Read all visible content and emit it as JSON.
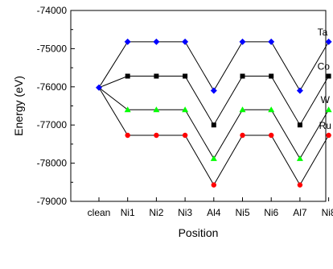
{
  "chart_data": {
    "type": "line",
    "categories": [
      "clean",
      "Ni1",
      "Ni2",
      "Ni3",
      "Al4",
      "Ni5",
      "Ni6",
      "Al7",
      "Ni8"
    ],
    "xlabel": "Position",
    "ylabel": "Energy (eV)",
    "ylim": [
      -79000,
      -74000
    ],
    "yticks": [
      -79000,
      -78000,
      -77000,
      -76000,
      -75000,
      -74000
    ],
    "yticklabels": [
      "-79000",
      "-78000",
      "-77000",
      "-76000",
      "-75000",
      "-74000"
    ],
    "grid": false,
    "legend": "inline labels at right end of each series",
    "series": [
      {
        "name": "Ta",
        "color": "#0000ff",
        "marker": "diamond",
        "values": [
          -76020,
          -74820,
          -74820,
          -74820,
          -76100,
          -74820,
          -74820,
          -76100,
          -74820
        ]
      },
      {
        "name": "Co",
        "color": "#000000",
        "marker": "square",
        "values": [
          -76020,
          -75720,
          -75720,
          -75720,
          -77000,
          -75720,
          -75720,
          -77000,
          -75720
        ]
      },
      {
        "name": "W",
        "color": "#00ff00",
        "marker": "triangle",
        "values": [
          -76020,
          -76600,
          -76600,
          -76600,
          -77880,
          -76600,
          -76600,
          -77880,
          -76600
        ]
      },
      {
        "name": "Ru",
        "color": "#ff0000",
        "marker": "circle",
        "values": [
          -76020,
          -77270,
          -77270,
          -77270,
          -78570,
          -77270,
          -77270,
          -78570,
          -77270
        ]
      }
    ]
  }
}
